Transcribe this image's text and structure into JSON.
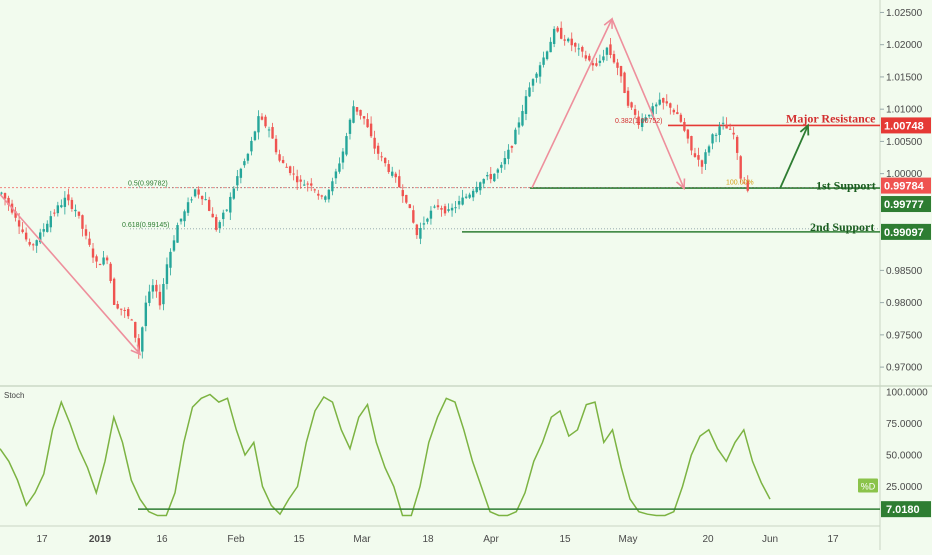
{
  "chart_data": [
    {
      "type": "candlestick",
      "ylim": [
        0.968,
        1.026
      ],
      "y_ticks": [
        "1.02500",
        "1.02000",
        "1.01500",
        "1.01000",
        "1.00500",
        "1.00000",
        "0.98500",
        "0.98000",
        "0.97500",
        "0.97000"
      ],
      "x_ticks": [
        "17",
        "2019",
        "16",
        "Feb",
        "15",
        "Mar",
        "18",
        "Apr",
        "15",
        "May",
        "20",
        "Jun",
        "17"
      ],
      "price_path": [
        [
          0,
          0.997
        ],
        [
          4,
          0.9935
        ],
        [
          8,
          0.9885
        ],
        [
          11,
          0.9905
        ],
        [
          14,
          0.9935
        ],
        [
          18,
          0.996
        ],
        [
          21,
          0.9945
        ],
        [
          24,
          0.99
        ],
        [
          27,
          0.986
        ],
        [
          30,
          0.987
        ],
        [
          32,
          0.98
        ],
        [
          35,
          0.9785
        ],
        [
          37,
          0.977
        ],
        [
          39,
          0.9725
        ],
        [
          41,
          0.98
        ],
        [
          43,
          0.9825
        ],
        [
          45,
          0.98
        ],
        [
          47,
          0.986
        ],
        [
          50,
          0.992
        ],
        [
          52,
          0.994
        ],
        [
          55,
          0.9975
        ],
        [
          58,
          0.996
        ],
        [
          61,
          0.9915
        ],
        [
          64,
          0.9945
        ],
        [
          67,
          0.9995
        ],
        [
          70,
          1.003
        ],
        [
          73,
          1.0085
        ],
        [
          76,
          1.007
        ],
        [
          79,
          1.002
        ],
        [
          82,
          1.0005
        ],
        [
          85,
          0.9985
        ],
        [
          88,
          0.9985
        ],
        [
          91,
          0.996
        ],
        [
          94,
          0.9985
        ],
        [
          97,
          1.0035
        ],
        [
          100,
          1.0105
        ],
        [
          103,
          1.0085
        ],
        [
          106,
          1.004
        ],
        [
          109,
          1.0015
        ],
        [
          112,
          0.999
        ],
        [
          115,
          0.996
        ],
        [
          118,
          0.9905
        ],
        [
          121,
          0.9935
        ],
        [
          124,
          0.995
        ],
        [
          127,
          0.994
        ],
        [
          130,
          0.9955
        ],
        [
          133,
          0.997
        ],
        [
          136,
          0.999
        ],
        [
          139,
          0.9995
        ],
        [
          142,
          1.001
        ],
        [
          145,
          1.0045
        ],
        [
          148,
          1.01
        ],
        [
          151,
          1.015
        ],
        [
          154,
          1.018
        ],
        [
          157,
          1.022
        ],
        [
          160,
          1.021
        ],
        [
          163,
          1.0195
        ],
        [
          166,
          1.018
        ],
        [
          169,
          1.0165
        ],
        [
          172,
          1.0195
        ],
        [
          175,
          1.0165
        ],
        [
          178,
          1.011
        ],
        [
          181,
          1.008
        ],
        [
          184,
          1.0095
        ],
        [
          187,
          1.011
        ],
        [
          190,
          1.0105
        ],
        [
          193,
          1.008
        ],
        [
          196,
          1.0035
        ],
        [
          199,
          1.0015
        ],
        [
          202,
          1.006
        ],
        [
          205,
          1.0075
        ],
        [
          208,
          1.006
        ],
        [
          210,
          0.9995
        ],
        [
          212,
          0.9978
        ]
      ],
      "x_domain": [
        0,
        250
      ],
      "levels": [
        {
          "label": "Major Resistance",
          "value": "1.00748",
          "y": 1.00748,
          "color": "#e53935"
        },
        {
          "label": "1st Support",
          "value": "0.99784",
          "y": 0.99784,
          "color": "#ef5350"
        },
        {
          "label": "",
          "value": "0.99777",
          "y": 0.99777,
          "color": "#2e7d32"
        },
        {
          "label": "2nd Support",
          "value": "0.99097",
          "y": 0.99097,
          "color": "#2e7d32"
        }
      ],
      "fib_labels": [
        {
          "text": "0.382(1.00752)",
          "y": 1.00752
        },
        {
          "text": "0.5(0.99782)",
          "y": 0.99782
        },
        {
          "text": "0.618(0.99145)",
          "y": 0.99145
        },
        {
          "text": "100.00%",
          "y": 0.998
        }
      ]
    },
    {
      "type": "line",
      "title": "Stoch",
      "ylim": [
        0,
        100
      ],
      "y_ticks": [
        "100.0000",
        "75.0000",
        "50.0000",
        "25.0000"
      ],
      "series": [
        {
          "name": "%D",
          "values": [
            55,
            45,
            30,
            10,
            20,
            35,
            70,
            92,
            75,
            55,
            40,
            20,
            45,
            80,
            60,
            30,
            15,
            5,
            2,
            2,
            20,
            60,
            88,
            95,
            98,
            92,
            95,
            70,
            50,
            60,
            25,
            10,
            3,
            15,
            25,
            60,
            85,
            96,
            92,
            70,
            55,
            80,
            90,
            60,
            40,
            25,
            2,
            2,
            25,
            60,
            80,
            95,
            92,
            70,
            45,
            25,
            5,
            2,
            2,
            5,
            20,
            45,
            60,
            80,
            85,
            65,
            70,
            90,
            92,
            60,
            70,
            40,
            15,
            5,
            3,
            2,
            2,
            5,
            25,
            50,
            65,
            70,
            55,
            45,
            60,
            70,
            45,
            28,
            15
          ]
        }
      ],
      "markers": [
        {
          "label": "%D",
          "value": ""
        },
        {
          "label": "",
          "value": "7.0180"
        }
      ]
    }
  ]
}
